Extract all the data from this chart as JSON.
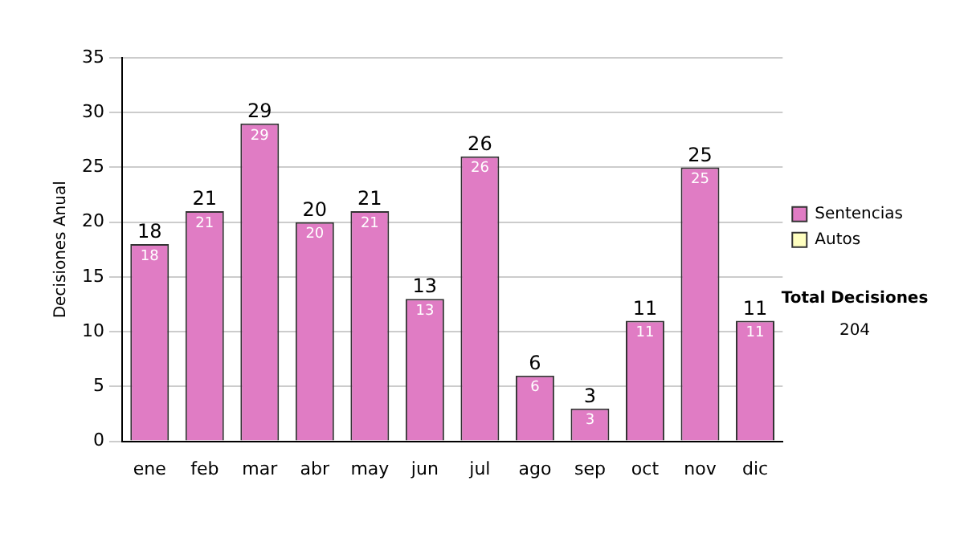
{
  "chart_data": {
    "type": "bar",
    "ylabel": "Decisiones Anual",
    "categories": [
      "ene",
      "feb",
      "mar",
      "abr",
      "may",
      "jun",
      "jul",
      "ago",
      "sep",
      "oct",
      "nov",
      "dic"
    ],
    "series": [
      {
        "name": "Sentencias",
        "color": "#e07cc4",
        "values": [
          18,
          21,
          29,
          20,
          21,
          13,
          26,
          6,
          3,
          11,
          25,
          11
        ],
        "value_labels": [
          "18",
          "21",
          "29",
          "20",
          "21",
          "13",
          "26",
          "6",
          "3",
          "11",
          "25",
          "11"
        ]
      },
      {
        "name": "Autos",
        "color": "#ffffc0",
        "values": [
          0,
          0,
          0,
          0,
          0,
          0,
          0,
          0,
          0,
          0,
          0,
          0
        ]
      }
    ],
    "stacked": true,
    "totals": [
      "18",
      "21",
      "29",
      "20",
      "21",
      "13",
      "26",
      "6",
      "3",
      "11",
      "25",
      "11"
    ],
    "ylim": [
      0,
      35
    ],
    "yticks": [
      0,
      5,
      10,
      15,
      20,
      25,
      30,
      35
    ],
    "grid": "y",
    "legend": "right",
    "annotations": [
      "Total Decisiones",
      "204"
    ]
  }
}
